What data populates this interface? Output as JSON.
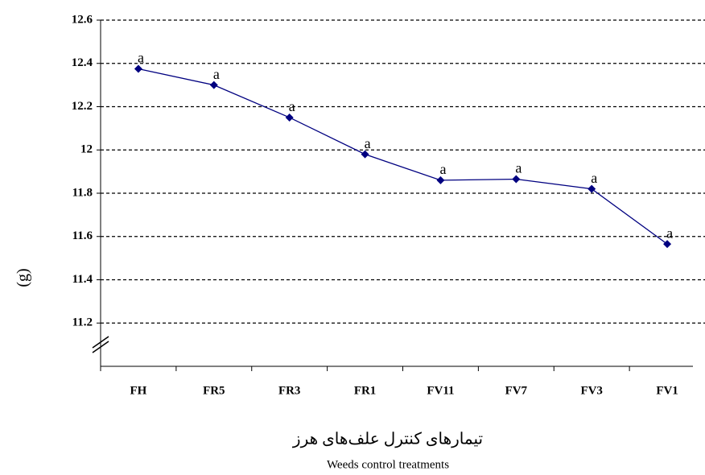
{
  "chart_data": {
    "type": "line",
    "y_label": "(g)",
    "x_label": "تیمارهای کنترل علف‌های هرز",
    "x_label_en": "Weeds control treatments",
    "categories": [
      "FH",
      "FR5",
      "FR3",
      "FR1",
      "FV11",
      "FV7",
      "FV3",
      "FV1"
    ],
    "series": [
      {
        "name": "",
        "color": "#000080",
        "values": [
          12.375,
          12.3,
          12.15,
          11.98,
          11.86,
          11.865,
          11.82,
          11.565
        ]
      }
    ],
    "point_labels": [
      "a",
      "a",
      "a",
      "a",
      "a",
      "a",
      "a",
      "a"
    ],
    "ylim": [
      11.0,
      12.6
    ],
    "yticks": [
      11.2,
      11.4,
      11.6,
      11.8,
      12,
      12.2,
      12.4,
      12.6
    ],
    "grid": true
  }
}
